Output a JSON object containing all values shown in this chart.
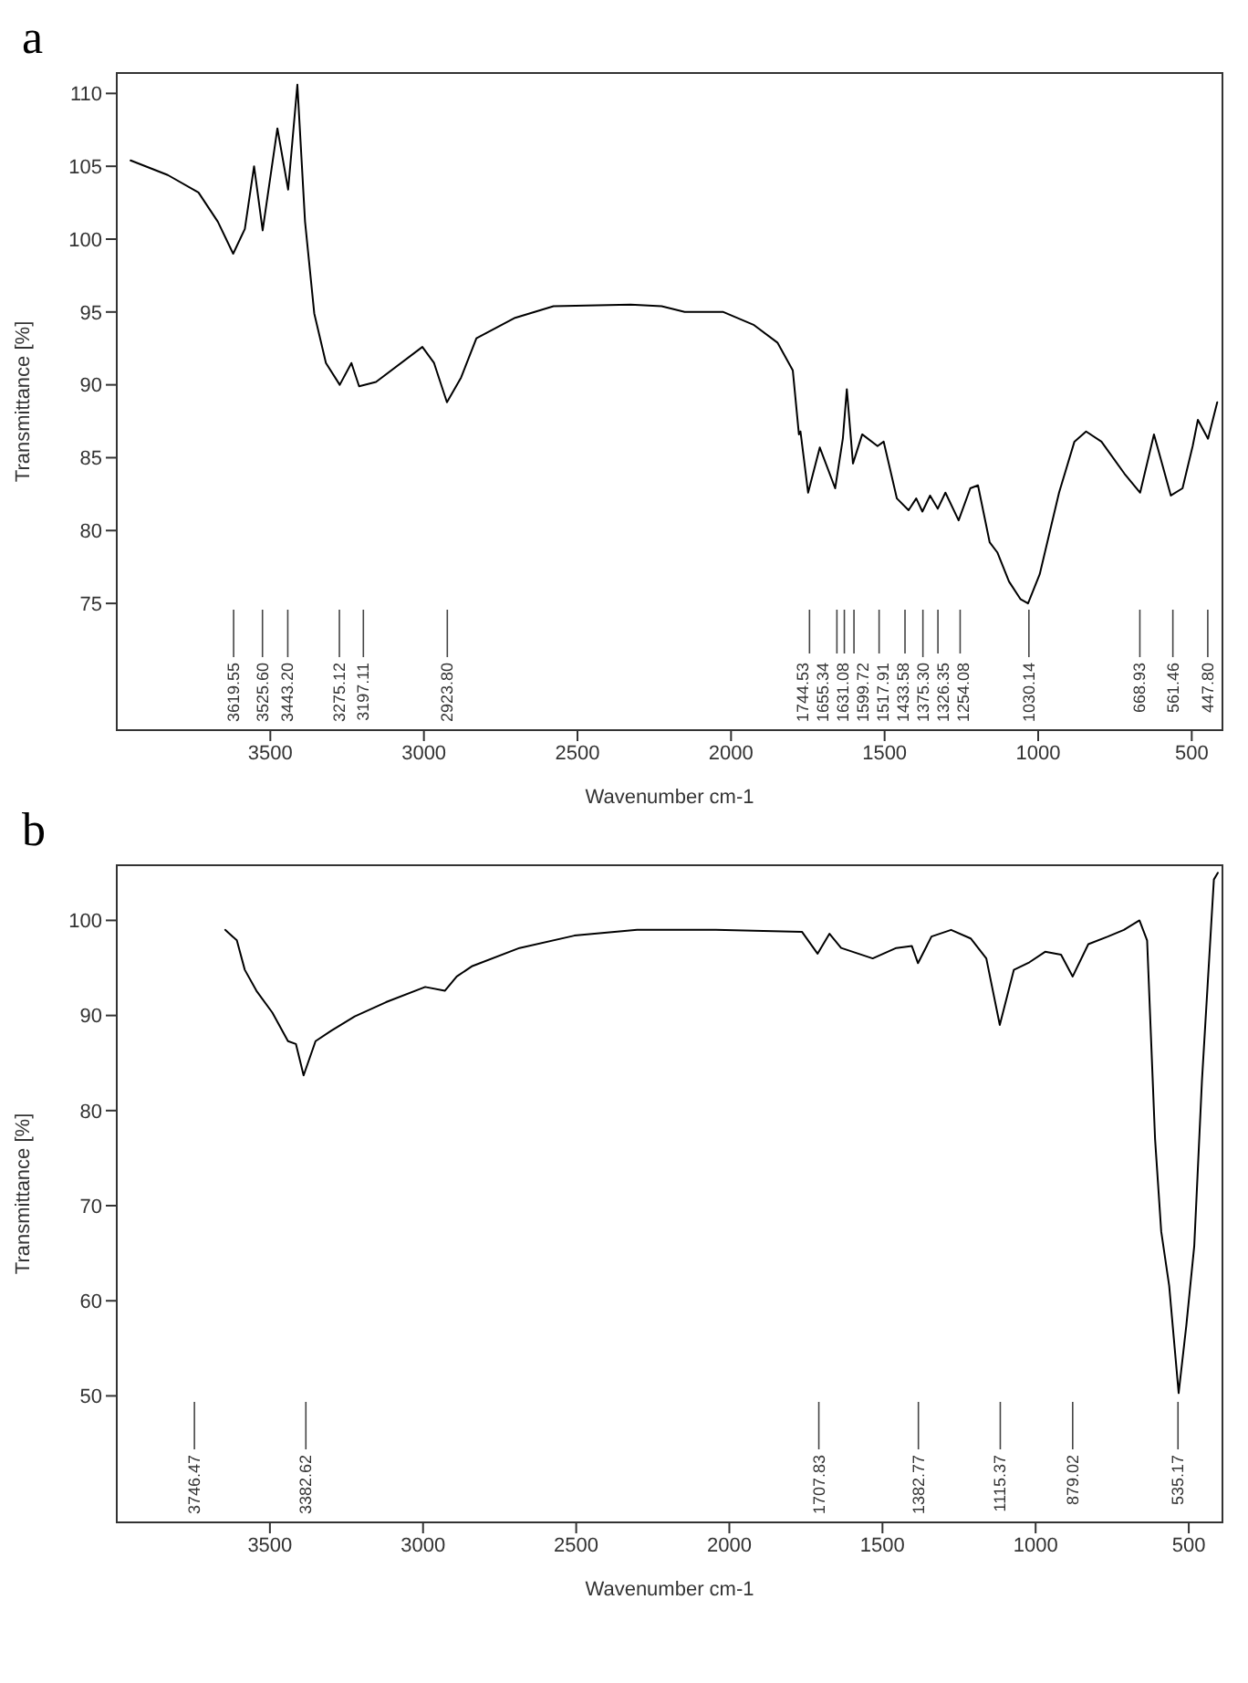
{
  "chart_data": [
    {
      "type": "line",
      "title": "a",
      "xlabel": "Wavenumber cm-1",
      "ylabel": "Transmittance [%]",
      "xlim": [
        4000,
        400
      ],
      "ylim": [
        66.3,
        111.4
      ],
      "xticks": [
        3500,
        3000,
        2500,
        2000,
        1500,
        1000,
        500
      ],
      "yticks": [
        75,
        80,
        85,
        90,
        95,
        100,
        105,
        110
      ],
      "series": [
        {
          "color": "#000000",
          "x": [
            3955,
            3834,
            3734,
            3671,
            3621,
            3583,
            3553,
            3525,
            3477,
            3442,
            3412,
            3387,
            3357,
            3319,
            3274,
            3236,
            3211,
            3156,
            3005,
            2967,
            2925,
            2879,
            2829,
            2703,
            2578,
            2327,
            2226,
            2151,
            2025,
            1925,
            1849,
            1799,
            1779,
            1774,
            1749,
            1711,
            1661,
            1636,
            1623,
            1603,
            1573,
            1523,
            1503,
            1460,
            1422,
            1397,
            1377,
            1352,
            1327,
            1302,
            1259,
            1221,
            1196,
            1158,
            1133,
            1095,
            1058,
            1033,
            995,
            932,
            882,
            844,
            794,
            719,
            668,
            623,
            568,
            530,
            497,
            480,
            447,
            417
          ],
          "values": [
            105.4,
            104.4,
            103.2,
            101.2,
            99.0,
            100.7,
            105.0,
            100.6,
            107.6,
            103.4,
            110.6,
            101.2,
            94.9,
            91.5,
            90.0,
            91.5,
            89.9,
            90.2,
            92.6,
            91.5,
            88.8,
            90.5,
            93.2,
            94.6,
            95.4,
            95.5,
            95.4,
            95.0,
            95.0,
            94.1,
            92.9,
            91.0,
            86.6,
            86.8,
            82.6,
            85.7,
            82.9,
            86.3,
            89.7,
            84.6,
            86.6,
            85.8,
            86.1,
            82.2,
            81.4,
            82.2,
            81.3,
            82.4,
            81.5,
            82.6,
            80.7,
            82.9,
            83.1,
            79.2,
            78.5,
            76.5,
            75.3,
            75.0,
            77.0,
            82.6,
            86.1,
            86.8,
            86.1,
            83.9,
            82.6,
            86.6,
            82.4,
            82.9,
            85.8,
            87.6,
            86.3,
            88.8
          ]
        }
      ],
      "ref_lines": [
        {
          "axis": "x",
          "value": 3619.55,
          "label": "3619.55"
        },
        {
          "axis": "x",
          "value": 3525.6,
          "label": "3525.60"
        },
        {
          "axis": "x",
          "value": 3443.2,
          "label": "3443.20"
        },
        {
          "axis": "x",
          "value": 3275.12,
          "label": "3275.12"
        },
        {
          "axis": "x",
          "value": 3197.11,
          "label": "3197.11"
        },
        {
          "axis": "x",
          "value": 2923.8,
          "label": "2923.80"
        },
        {
          "axis": "x",
          "value": 1744.53,
          "label": "1744.53"
        },
        {
          "axis": "x",
          "value": 1655.34,
          "label": "1655.34"
        },
        {
          "axis": "x",
          "value": 1631.08,
          "label": "1631.08"
        },
        {
          "axis": "x",
          "value": 1599.72,
          "label": "1599.72"
        },
        {
          "axis": "x",
          "value": 1517.91,
          "label": "1517.91"
        },
        {
          "axis": "x",
          "value": 1433.58,
          "label": "1433.58"
        },
        {
          "axis": "x",
          "value": 1375.3,
          "label": "1375.30"
        },
        {
          "axis": "x",
          "value": 1326.35,
          "label": "1326.35"
        },
        {
          "axis": "x",
          "value": 1254.08,
          "label": "1254.08"
        },
        {
          "axis": "x",
          "value": 1030.14,
          "label": "1030.14"
        },
        {
          "axis": "x",
          "value": 668.93,
          "label": "668.93"
        },
        {
          "axis": "x",
          "value": 561.46,
          "label": "561.46"
        },
        {
          "axis": "x",
          "value": 447.8,
          "label": "447.80"
        }
      ]
    },
    {
      "type": "line",
      "title": "b",
      "xlabel": "Wavenumber cm-1",
      "ylabel": "Transmittance [%]",
      "xlim": [
        4000,
        390
      ],
      "ylim": [
        36.7,
        105.8
      ],
      "xticks": [
        3500,
        3000,
        2500,
        2000,
        1500,
        1000,
        500
      ],
      "yticks": [
        50,
        60,
        70,
        80,
        90,
        100
      ],
      "series": [
        {
          "color": "#000000",
          "x": [
            3646,
            3608,
            3582,
            3544,
            3492,
            3441,
            3415,
            3390,
            3351,
            3300,
            3223,
            3121,
            2993,
            2929,
            2890,
            2839,
            2685,
            2506,
            2301,
            2045,
            1763,
            1712,
            1673,
            1635,
            1532,
            1455,
            1404,
            1384,
            1340,
            1276,
            1212,
            1161,
            1117,
            1071,
            1020,
            969,
            917,
            879,
            828,
            764,
            712,
            661,
            636,
            610,
            590,
            564,
            533,
            508,
            482,
            457,
            418,
            405
          ],
          "values": [
            99.0,
            97.9,
            94.8,
            92.6,
            90.3,
            87.3,
            87.0,
            83.7,
            87.3,
            88.4,
            89.9,
            91.4,
            93.0,
            92.6,
            94.1,
            95.2,
            97.1,
            98.4,
            99.0,
            99.0,
            98.8,
            96.5,
            98.6,
            97.1,
            96.0,
            97.1,
            97.3,
            95.5,
            98.3,
            99.0,
            98.1,
            96.0,
            89.0,
            94.8,
            95.6,
            96.7,
            96.4,
            94.1,
            97.5,
            98.3,
            99.0,
            100.0,
            97.9,
            77.0,
            67.3,
            61.6,
            50.3,
            57.4,
            65.8,
            83.1,
            104.3,
            105.0
          ]
        }
      ],
      "ref_lines": [
        {
          "axis": "x",
          "value": 3746.47,
          "label": "3746.47"
        },
        {
          "axis": "x",
          "value": 3382.62,
          "label": "3382.62"
        },
        {
          "axis": "x",
          "value": 1707.83,
          "label": "1707.83"
        },
        {
          "axis": "x",
          "value": 1382.77,
          "label": "1382.77"
        },
        {
          "axis": "x",
          "value": 1115.37,
          "label": "1115.37"
        },
        {
          "axis": "x",
          "value": 879.02,
          "label": "879.02"
        },
        {
          "axis": "x",
          "value": 535.17,
          "label": "535.17"
        }
      ]
    }
  ]
}
